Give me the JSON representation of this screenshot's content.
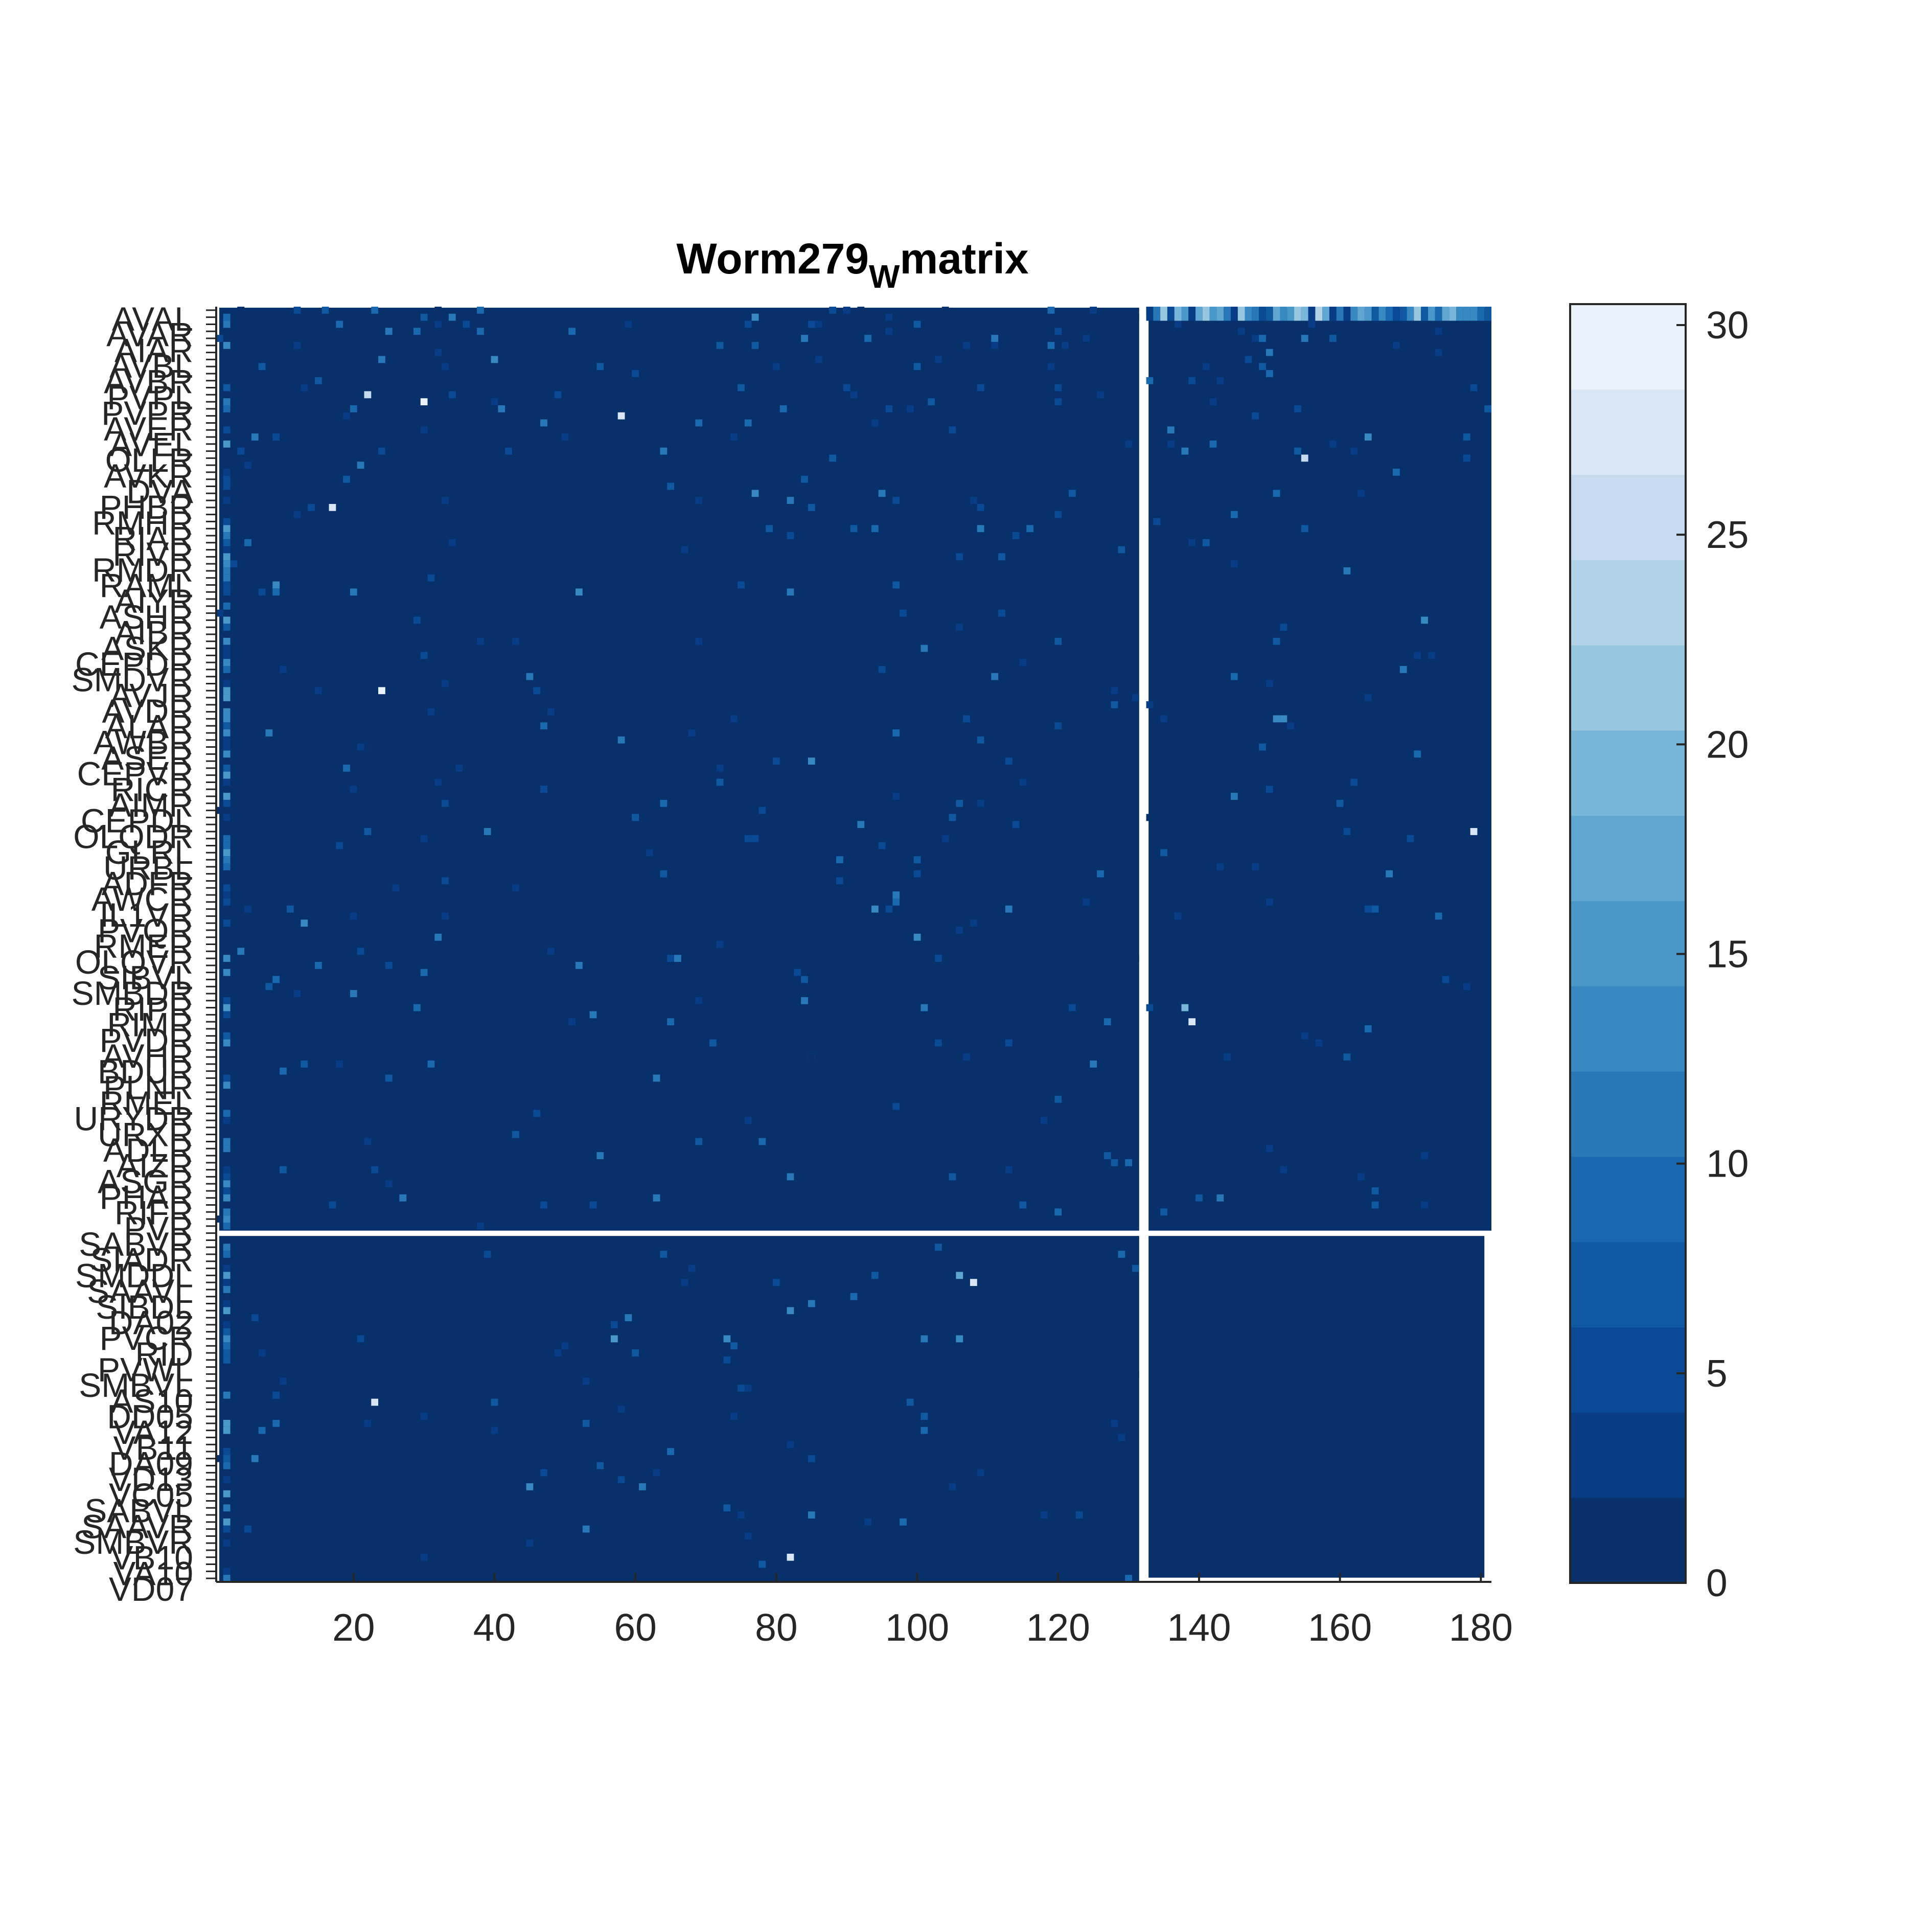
{
  "chart_data": {
    "type": "heatmap",
    "title": {
      "main": "Worm279",
      "subscript": "W",
      "suffix": "matrix"
    },
    "xlabel": "",
    "ylabel": "",
    "x_ticks": [
      20,
      40,
      60,
      80,
      100,
      120,
      140,
      160,
      180
    ],
    "x_range": [
      0.5,
      181.5
    ],
    "y_range": [
      0.5,
      181.5
    ],
    "block_split": {
      "rows_top": 131,
      "cols_left": 131
    },
    "colorbar": {
      "ticks": [
        0,
        5,
        10,
        15,
        20,
        25,
        30
      ],
      "range": [
        0,
        30.5
      ],
      "levels": 15,
      "colors": [
        "#08306b",
        "#083c84",
        "#0a4a94",
        "#1059a1",
        "#1a68ae",
        "#2878b8",
        "#3888c1",
        "#4a98c9",
        "#5fa6d1",
        "#78b6d9",
        "#97c6df",
        "#b2d3e7",
        "#c6dbef",
        "#d8e6f5",
        "#eaf2fb",
        "#f7fbff"
      ]
    },
    "row_labels": [
      "AVAL",
      "AVAR",
      "AIAR",
      "AVBL",
      "AVBR",
      "PVPL",
      "PVPR",
      "AVER",
      "AVEL",
      "OLLR",
      "AVKR",
      "DVA",
      "PHBR",
      "RMHR",
      "RIAR",
      "RIVR",
      "RMDR",
      "RAML",
      "AIYR",
      "ASHR",
      "AIBR",
      "ASKR",
      "CEPDR",
      "SMDVR",
      "AVJR",
      "AVDR",
      "ALAR",
      "AWBR",
      "ASER",
      "CEPVR",
      "RICR",
      "AIMR",
      "CEPDL",
      "OLQDR",
      "GLRL",
      "URBL",
      "ADFR",
      "AWCR",
      "IL1VR",
      "PVQR",
      "RMER",
      "OLQVR",
      "SIBVL",
      "SMBDR",
      "RIPR",
      "RIMR",
      "PVDR",
      "AVHR",
      "BDUR",
      "PLNR",
      "RMEL",
      "URYDR",
      "URXR",
      "ADLR",
      "AIZR",
      "ASGR",
      "PHAR",
      "RIFR",
      "PVR",
      "SABVR",
      "SIADR",
      "SMDDL",
      "SAAVL",
      "SIBDL",
      "DA02",
      "PVCR",
      "RID",
      "PVWL",
      "SMBVL",
      "AS10",
      "DD05",
      "VA12",
      "VB11",
      "DA09",
      "VD13",
      "VC05",
      "SABVL",
      "SAAVR",
      "SMBVR",
      "VB10",
      "VA10",
      "VD07"
    ],
    "series_note": "adjacency weight matrix, 181 x 181; most entries 0, sparse higher weights",
    "highlights": [
      {
        "x": 30,
        "y": 14,
        "value": 30
      },
      {
        "x": 58,
        "y": 16,
        "value": 28
      },
      {
        "x": 17,
        "y": 29,
        "value": 27
      },
      {
        "x": 24,
        "y": 55,
        "value": 29
      },
      {
        "x": 22,
        "y": 13,
        "value": 26
      },
      {
        "x": 155,
        "y": 22,
        "value": 26
      },
      {
        "x": 179,
        "y": 75,
        "value": 27
      },
      {
        "x": 139,
        "y": 102,
        "value": 28
      },
      {
        "x": 138,
        "y": 100,
        "value": 20
      },
      {
        "x": 108,
        "y": 139,
        "value": 27
      },
      {
        "x": 106,
        "y": 138,
        "value": 18
      },
      {
        "x": 23,
        "y": 156,
        "value": 28
      },
      {
        "x": 82,
        "y": 178,
        "value": 27
      },
      {
        "x": 82,
        "y": 143,
        "value": 14
      },
      {
        "x": 57,
        "y": 147,
        "value": 16
      },
      {
        "x": 151,
        "y": 59,
        "value": 13
      },
      {
        "x": 152,
        "y": 59,
        "value": 13
      },
      {
        "x": 20,
        "y": 41,
        "value": 12
      },
      {
        "x": 7,
        "y": 160,
        "value": 10
      },
      {
        "x": 40,
        "y": 8,
        "value": 14
      }
    ]
  }
}
